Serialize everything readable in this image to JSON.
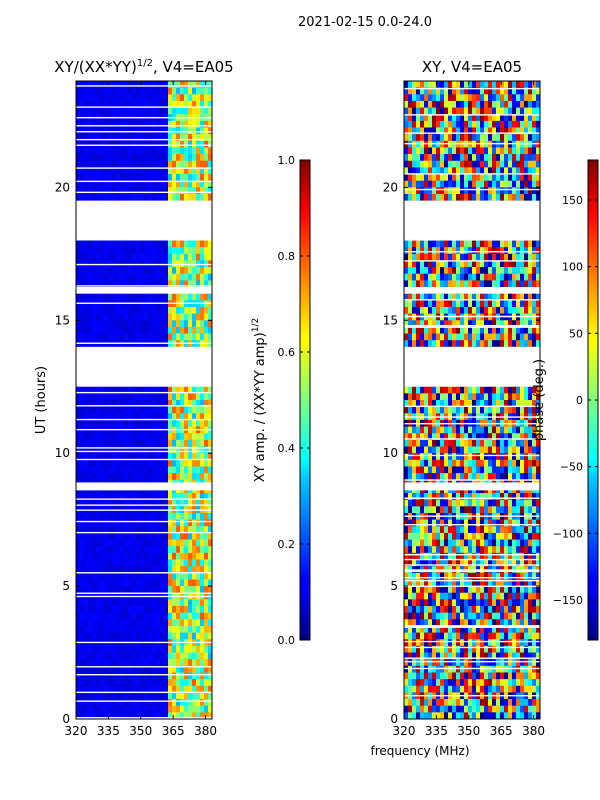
{
  "figure_title": "2021-02-15 0.0-24.0",
  "chart_data": [
    {
      "type": "heatmap",
      "title": "XY/(XX*YY)^1/2, V4=EA05",
      "title_main": "XY/(XX*YY)",
      "title_sup": "1/2",
      "title_tail": ", V4=EA05",
      "xlabel": "",
      "ylabel": "UT (hours)",
      "xlim": [
        320,
        383
      ],
      "ylim": [
        0,
        24
      ],
      "xticks": [
        320,
        335,
        350,
        365,
        380
      ],
      "yticks": [
        0,
        5,
        10,
        15,
        20
      ],
      "colorbar": {
        "label": "XY amp. / (XX*YY amp)^1/2",
        "label_main": "XY amp. / (XX*YY amp)",
        "label_sup": "1/2",
        "range": [
          0.0,
          1.0
        ],
        "ticks": [
          "0.0",
          "0.2",
          "0.4",
          "0.6",
          "0.8",
          "1.0"
        ],
        "tick_values": [
          0.0,
          0.2,
          0.4,
          0.6,
          0.8,
          1.0
        ],
        "colormap": "jet"
      },
      "data_gaps_hours": [
        [
          18.0,
          19.5
        ],
        [
          12.5,
          14.0
        ],
        [
          16.0,
          16.25
        ],
        [
          8.6,
          8.9
        ]
      ],
      "note": "low amplitude (~0.1) below 362 MHz; 0.3-0.8 between 362-383 MHz"
    },
    {
      "type": "heatmap",
      "title": "XY, V4=EA05",
      "xlabel": "frequency (MHz)",
      "ylabel": "",
      "xlim": [
        320,
        383
      ],
      "ylim": [
        0,
        24
      ],
      "xticks": [
        320,
        335,
        350,
        365,
        380
      ],
      "yticks": [
        0,
        5,
        10,
        15,
        20
      ],
      "colorbar": {
        "label": "phase (deg.)",
        "range": [
          -180,
          180
        ],
        "ticks": [
          "−150",
          "−100",
          "−50",
          "0",
          "50",
          "100",
          "150"
        ],
        "tick_values": [
          -150,
          -100,
          -50,
          0,
          50,
          100,
          150
        ],
        "colormap": "jet"
      },
      "data_gaps_hours": [
        [
          18.0,
          19.5
        ],
        [
          12.5,
          14.0
        ],
        [
          16.0,
          16.25
        ],
        [
          8.6,
          8.9
        ]
      ],
      "note": "phase spans full -180 to 180 deg range, noisy"
    }
  ]
}
